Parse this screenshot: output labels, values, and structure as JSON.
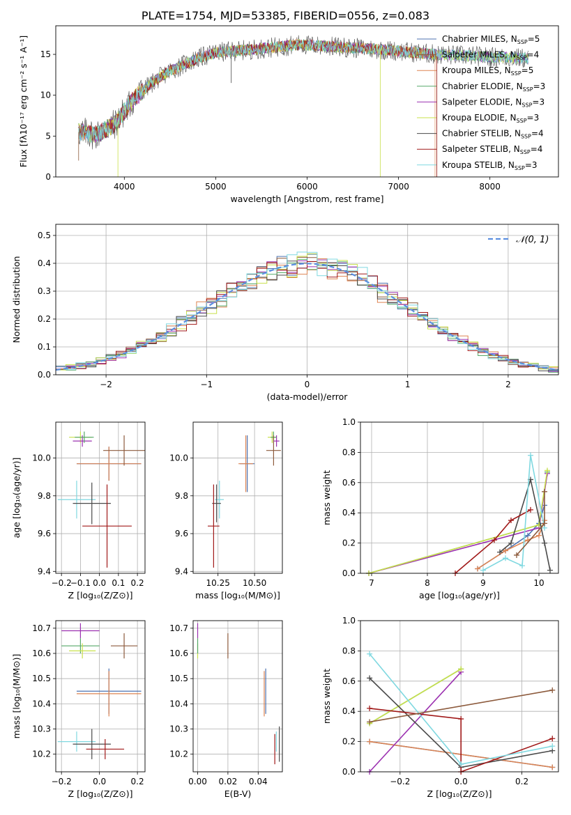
{
  "figure": {
    "title": "PLATE=1754, MJD=53385, FIBERID=0556, z=0.083"
  },
  "models": [
    {
      "name": "Chabrier MILES",
      "nssp": "5",
      "color": "#4c72b0"
    },
    {
      "name": "Salpeter MILES",
      "nssp": "4",
      "color": "#8c5a3c"
    },
    {
      "name": "Kroupa MILES",
      "nssp": "5",
      "color": "#dd8452"
    },
    {
      "name": "Chabrier ELODIE",
      "nssp": "3",
      "color": "#55a868"
    },
    {
      "name": "Salpeter ELODIE",
      "nssp": "3",
      "color": "#9b30b0"
    },
    {
      "name": "Kroupa ELODIE",
      "nssp": "3",
      "color": "#c8e04a"
    },
    {
      "name": "Chabrier STELIB",
      "nssp": "4",
      "color": "#4a4a4a"
    },
    {
      "name": "Salpeter STELIB",
      "nssp": "4",
      "color": "#a01818"
    },
    {
      "name": "Kroupa STELIB",
      "nssp": "3",
      "color": "#7fd8e0"
    }
  ],
  "chart_data": [
    {
      "id": "spectrum",
      "type": "line",
      "xlabel": "wavelength [Angstrom, rest frame]",
      "ylabel": "Flux [fλ10⁻¹⁷ erg cm⁻² s⁻¹ A⁻¹]",
      "xlim": [
        3250,
        8750
      ],
      "ylim": [
        0,
        18.5
      ],
      "xticks": [
        4000,
        5000,
        6000,
        7000,
        8000
      ],
      "yticks": [
        0,
        5,
        10,
        15
      ],
      "continuum": [
        [
          3500,
          5.5
        ],
        [
          3700,
          5.2
        ],
        [
          3900,
          6.5
        ],
        [
          4100,
          9.5
        ],
        [
          4300,
          11.5
        ],
        [
          4500,
          13
        ],
        [
          4800,
          14.5
        ],
        [
          5000,
          15.2
        ],
        [
          5300,
          15.5
        ],
        [
          5600,
          15.8
        ],
        [
          5900,
          16.2
        ],
        [
          6200,
          16
        ],
        [
          6500,
          15.8
        ],
        [
          6800,
          15.6
        ],
        [
          7100,
          15.3
        ],
        [
          7400,
          15
        ],
        [
          7800,
          14.8
        ],
        [
          8200,
          14.6
        ],
        [
          8400,
          14.5
        ]
      ],
      "legend": "upper right"
    },
    {
      "id": "residuals",
      "type": "histogram",
      "xlabel": "(data-model)/error",
      "ylabel": "Normed distribution",
      "xlim": [
        -2.5,
        2.5
      ],
      "ylim": [
        0,
        0.54
      ],
      "xticks": [
        -2,
        -1,
        0,
        1,
        2
      ],
      "yticks": [
        0.0,
        0.1,
        0.2,
        0.3,
        0.4,
        0.5
      ],
      "reference": {
        "name": "𝒩(0, 1)",
        "mu": 0,
        "sigma": 1,
        "color": "#5b8fe0"
      },
      "bin_width": 0.1
    },
    {
      "id": "age-vs-Z",
      "type": "errorbar",
      "xlabel": "Z [log₁₀(Z/Z⊙)]",
      "ylabel": "age  [log₁₀(age/yr)]",
      "xlim": [
        -0.23,
        0.24
      ],
      "ylim": [
        9.39,
        10.19
      ],
      "xticks": [
        -0.2,
        -0.1,
        0.0,
        0.1,
        0.2
      ],
      "yticks": [
        9.4,
        9.6,
        9.8,
        10.0
      ],
      "points": [
        {
          "m": 0,
          "x": 0.05,
          "y": 9.97,
          "xe": 0.17,
          "ye": 0.09
        },
        {
          "m": 2,
          "x": 0.05,
          "y": 9.97,
          "xe": 0.17,
          "ye": 0.09
        },
        {
          "m": 5,
          "x": -0.1,
          "y": 10.11,
          "xe": 0.06,
          "ye": 0.03
        },
        {
          "m": 4,
          "x": -0.09,
          "y": 10.09,
          "xe": 0.05,
          "ye": 0.03
        },
        {
          "m": 3,
          "x": -0.08,
          "y": 10.11,
          "xe": 0.05,
          "ye": 0.03
        },
        {
          "m": 8,
          "x": -0.12,
          "y": 9.78,
          "xe": 0.1,
          "ye": 0.1
        },
        {
          "m": 6,
          "x": -0.04,
          "y": 9.76,
          "xe": 0.1,
          "ye": 0.11
        },
        {
          "m": 7,
          "x": 0.04,
          "y": 9.64,
          "xe": 0.13,
          "ye": 0.22
        },
        {
          "m": 1,
          "x": 0.13,
          "y": 10.04,
          "xe": 0.11,
          "ye": 0.08
        }
      ]
    },
    {
      "id": "age-vs-mass",
      "type": "errorbar",
      "xlabel": "mass [log₁₀(M/M⊙)]",
      "ylabel": "",
      "xlim": [
        10.08,
        10.69
      ],
      "ylim": [
        9.39,
        10.19
      ],
      "xticks": [
        10.25,
        10.5
      ],
      "yticks": [
        9.4,
        9.6,
        9.8,
        10.0
      ],
      "points": [
        {
          "m": 0,
          "x": 10.45,
          "y": 9.97,
          "xe": 0.05,
          "ye": 0.15
        },
        {
          "m": 2,
          "x": 10.44,
          "y": 9.97,
          "xe": 0.05,
          "ye": 0.15
        },
        {
          "m": 5,
          "x": 10.62,
          "y": 10.11,
          "xe": 0.03,
          "ye": 0.03
        },
        {
          "m": 4,
          "x": 10.65,
          "y": 10.09,
          "xe": 0.02,
          "ye": 0.03
        },
        {
          "m": 3,
          "x": 10.63,
          "y": 10.11,
          "xe": 0.02,
          "ye": 0.03
        },
        {
          "m": 8,
          "x": 10.26,
          "y": 9.78,
          "xe": 0.03,
          "ye": 0.1
        },
        {
          "m": 6,
          "x": 10.24,
          "y": 9.76,
          "xe": 0.03,
          "ye": 0.1
        },
        {
          "m": 7,
          "x": 10.22,
          "y": 9.64,
          "xe": 0.04,
          "ye": 0.22
        },
        {
          "m": 1,
          "x": 10.63,
          "y": 10.04,
          "xe": 0.05,
          "ye": 0.08
        }
      ]
    },
    {
      "id": "weight-vs-age",
      "type": "line",
      "xlabel": "age  [log₁₀(age/yr)]",
      "ylabel": "mass weight",
      "xlim": [
        6.8,
        10.35
      ],
      "ylim": [
        0,
        1
      ],
      "xticks": [
        7,
        8,
        9,
        10
      ],
      "yticks": [
        0.0,
        0.2,
        0.4,
        0.6,
        0.8,
        1.0
      ],
      "lines": [
        {
          "m": 0,
          "pts": [
            [
              8.9,
              0.03
            ],
            [
              9.4,
              0.15
            ],
            [
              9.8,
              0.25
            ],
            [
              10.0,
              0.33
            ],
            [
              10.1,
              0.45
            ]
          ]
        },
        {
          "m": 2,
          "pts": [
            [
              8.9,
              0.03
            ],
            [
              9.4,
              0.15
            ],
            [
              9.8,
              0.22
            ],
            [
              10.0,
              0.25
            ],
            [
              10.1,
              0.35
            ]
          ]
        },
        {
          "m": 3,
          "pts": [
            [
              6.95,
              0.0
            ],
            [
              10.0,
              0.32
            ],
            [
              10.15,
              0.67
            ]
          ]
        },
        {
          "m": 4,
          "pts": [
            [
              6.95,
              0.0
            ],
            [
              10.0,
              0.3
            ],
            [
              10.15,
              0.66
            ]
          ]
        },
        {
          "m": 5,
          "pts": [
            [
              6.95,
              0.0
            ],
            [
              10.0,
              0.32
            ],
            [
              10.15,
              0.68
            ]
          ]
        },
        {
          "m": 6,
          "pts": [
            [
              9.3,
              0.14
            ],
            [
              9.5,
              0.2
            ],
            [
              9.85,
              0.62
            ],
            [
              10.1,
              0.2
            ],
            [
              10.2,
              0.02
            ]
          ]
        },
        {
          "m": 7,
          "pts": [
            [
              8.5,
              0.0
            ],
            [
              9.2,
              0.22
            ],
            [
              9.5,
              0.35
            ],
            [
              9.85,
              0.42
            ]
          ]
        },
        {
          "m": 8,
          "pts": [
            [
              9.0,
              0.02
            ],
            [
              9.4,
              0.1
            ],
            [
              9.7,
              0.05
            ],
            [
              9.85,
              0.78
            ],
            [
              10.1,
              0.3
            ]
          ]
        },
        {
          "m": 1,
          "pts": [
            [
              9.6,
              0.12
            ],
            [
              10.1,
              0.33
            ],
            [
              10.1,
              0.54
            ]
          ]
        }
      ]
    },
    {
      "id": "mass-vs-Z",
      "type": "errorbar",
      "xlabel": "Z [log₁₀(Z/Z⊙)]",
      "ylabel": "mass [log₁₀(M/M⊙)]",
      "xlim": [
        -0.23,
        0.24
      ],
      "ylim": [
        10.13,
        10.73
      ],
      "xticks": [
        -0.2,
        0.0,
        0.2
      ],
      "yticks": [
        10.2,
        10.3,
        10.4,
        10.5,
        10.6,
        10.7
      ],
      "points": [
        {
          "m": 0,
          "x": 0.05,
          "y": 10.45,
          "xe": 0.17,
          "ye": 0.09
        },
        {
          "m": 2,
          "x": 0.05,
          "y": 10.44,
          "xe": 0.17,
          "ye": 0.09
        },
        {
          "m": 4,
          "x": -0.1,
          "y": 10.69,
          "xe": 0.1,
          "ye": 0.03
        },
        {
          "m": 3,
          "x": -0.1,
          "y": 10.63,
          "xe": 0.1,
          "ye": 0.03
        },
        {
          "m": 5,
          "x": -0.09,
          "y": 10.61,
          "xe": 0.07,
          "ye": 0.03
        },
        {
          "m": 8,
          "x": -0.12,
          "y": 10.25,
          "xe": 0.1,
          "ye": 0.04
        },
        {
          "m": 6,
          "x": -0.04,
          "y": 10.24,
          "xe": 0.1,
          "ye": 0.06
        },
        {
          "m": 7,
          "x": 0.03,
          "y": 10.22,
          "xe": 0.1,
          "ye": 0.04
        },
        {
          "m": 1,
          "x": 0.13,
          "y": 10.63,
          "xe": 0.07,
          "ye": 0.05
        }
      ]
    },
    {
      "id": "mass-vs-ebv",
      "type": "errorbar",
      "xlabel": "E(B-V)",
      "ylabel": "",
      "xlim": [
        -0.003,
        0.056
      ],
      "ylim": [
        10.13,
        10.73
      ],
      "xticks": [
        0.0,
        0.02,
        0.04
      ],
      "yticks": [
        10.2,
        10.3,
        10.4,
        10.5,
        10.6,
        10.7
      ],
      "points": [
        {
          "m": 0,
          "x": 0.045,
          "y": 10.45,
          "xe": 0,
          "ye": 0.09
        },
        {
          "m": 2,
          "x": 0.044,
          "y": 10.44,
          "xe": 0,
          "ye": 0.09
        },
        {
          "m": 4,
          "x": 0.0,
          "y": 10.69,
          "xe": 0,
          "ye": 0.03
        },
        {
          "m": 5,
          "x": 0.0,
          "y": 10.61,
          "xe": 0,
          "ye": 0.03
        },
        {
          "m": 3,
          "x": 0.0,
          "y": 10.63,
          "xe": 0,
          "ye": 0.03
        },
        {
          "m": 8,
          "x": 0.052,
          "y": 10.25,
          "xe": 0,
          "ye": 0.04
        },
        {
          "m": 6,
          "x": 0.054,
          "y": 10.24,
          "xe": 0,
          "ye": 0.07
        },
        {
          "m": 7,
          "x": 0.051,
          "y": 10.22,
          "xe": 0,
          "ye": 0.06
        },
        {
          "m": 1,
          "x": 0.02,
          "y": 10.63,
          "xe": 0,
          "ye": 0.05
        }
      ]
    },
    {
      "id": "weight-vs-Z",
      "type": "line",
      "xlabel": "Z [log₁₀(Z/Z⊙)]",
      "ylabel": "mass weight",
      "xlim": [
        -0.33,
        0.32
      ],
      "ylim": [
        0,
        1
      ],
      "xticks": [
        -0.2,
        0.0,
        0.2
      ],
      "yticks": [
        0.0,
        0.2,
        0.4,
        0.6,
        0.8,
        1.0
      ],
      "lines": [
        {
          "m": 0,
          "pts": [
            [
              -0.3,
              0.2
            ],
            [
              0.3,
              0.03
            ]
          ]
        },
        {
          "m": 2,
          "pts": [
            [
              -0.3,
              0.2
            ],
            [
              0.3,
              0.03
            ]
          ]
        },
        {
          "m": 3,
          "pts": [
            [
              -0.3,
              0.32
            ],
            [
              0.0,
              0.68
            ]
          ]
        },
        {
          "m": 4,
          "pts": [
            [
              -0.3,
              0.0
            ],
            [
              0.0,
              0.66
            ]
          ]
        },
        {
          "m": 5,
          "pts": [
            [
              -0.3,
              0.32
            ],
            [
              0.0,
              0.68
            ]
          ]
        },
        {
          "m": 6,
          "pts": [
            [
              -0.3,
              0.62
            ],
            [
              0.0,
              0.03
            ],
            [
              0.3,
              0.14
            ]
          ]
        },
        {
          "m": 7,
          "pts": [
            [
              -0.3,
              0.42
            ],
            [
              0.0,
              0.35
            ],
            [
              0.0,
              0.0
            ],
            [
              0.3,
              0.22
            ]
          ]
        },
        {
          "m": 8,
          "pts": [
            [
              -0.3,
              0.78
            ],
            [
              0.0,
              0.05
            ],
            [
              0.3,
              0.17
            ]
          ]
        },
        {
          "m": 1,
          "pts": [
            [
              -0.3,
              0.33
            ],
            [
              0.3,
              0.54
            ]
          ]
        }
      ]
    }
  ]
}
